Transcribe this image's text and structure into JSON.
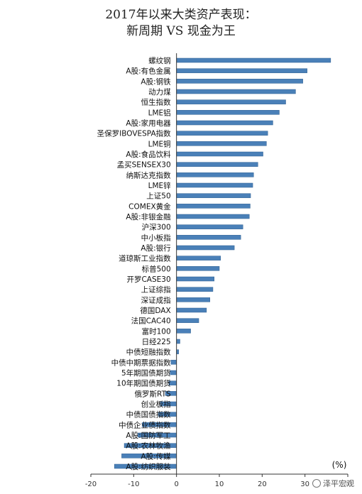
{
  "chart_data": {
    "type": "bar",
    "orientation": "horizontal",
    "title_lines": [
      "2017年以来大类资产表现：",
      "新周期 VS 现金为王"
    ],
    "unit_label": "(%)",
    "xlim": [
      -20,
      40
    ],
    "xticks": [
      -20,
      -10,
      0,
      10,
      20,
      30,
      40
    ],
    "bar_color": "#4a80b8",
    "categories": [
      "螺纹钢",
      "A股:有色金属",
      "A股:钢铁",
      "动力煤",
      "恒生指数",
      "LME铝",
      "A股:家用电器",
      "圣保罗IBOVESPA指数",
      "LME铜",
      "A股:食品饮料",
      "孟买SENSEX30",
      "纳斯达克指数",
      "LME锌",
      "上证50",
      "COMEX黄金",
      "A股:非银金融",
      "沪深300",
      "中小板指",
      "A股:银行",
      "道琼斯工业指数",
      "标普500",
      "开罗CASE30",
      "上证综指",
      "深证成指",
      "德国DAX",
      "法国CAC40",
      "富时100",
      "日经225",
      "中债短融指数",
      "中债中期票据指数",
      "5年期国债期货",
      "10年期国债期货",
      "俄罗斯RTS",
      "创业板指",
      "中债国债指数",
      "中债企业债指数",
      "A股:国防军工",
      "A股:农林牧渔",
      "A股:传媒",
      "A股:纺织服装"
    ],
    "values": [
      36.0,
      30.5,
      29.5,
      27.8,
      25.5,
      24.0,
      22.5,
      21.3,
      21.0,
      20.2,
      19.0,
      18.0,
      17.8,
      17.3,
      17.2,
      17.0,
      15.5,
      15.0,
      13.5,
      10.3,
      10.0,
      8.8,
      8.5,
      7.8,
      7.0,
      5.2,
      3.3,
      0.8,
      0.5,
      -1.3,
      -1.5,
      -1.8,
      -2.6,
      -3.8,
      -4.2,
      -8.0,
      -9.0,
      -12.2,
      -12.8,
      -14.5
    ]
  },
  "watermark": {
    "text": "泽平宏观"
  }
}
